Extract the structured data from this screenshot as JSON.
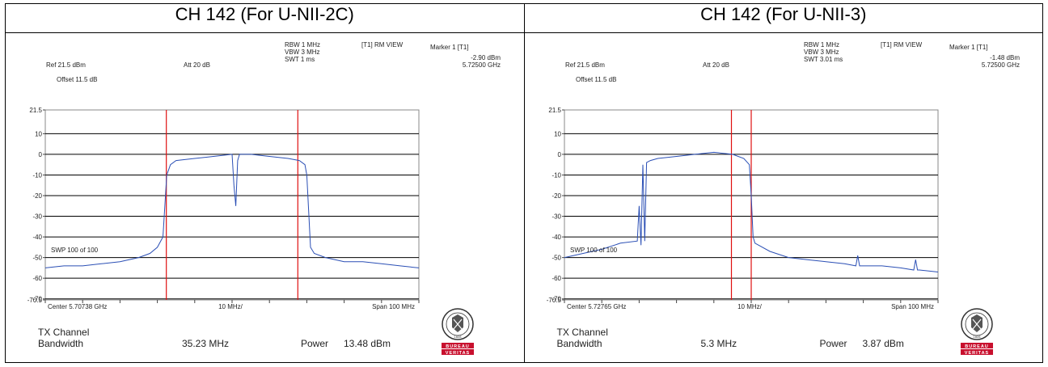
{
  "panels": [
    {
      "title": "CH 142 (For U-NII-2C)",
      "rbw": "RBW 1 MHz",
      "vbw": "VBW 3 MHz",
      "swt": "SWT 1 ms",
      "view": "[T1] RM VIEW",
      "marker_label": "Marker 1 [T1]",
      "marker_level": "-2.90 dBm",
      "marker_freq": "5.72500 GHz",
      "ref": "Ref 21.5 dBm",
      "att": "Att  20 dB",
      "offset": "Offset 11.5 dB",
      "swp": "SWP 100 of 100",
      "center": "Center 5.70738 GHz",
      "div": "10 MHz/",
      "span": "Span 100 MHz",
      "tx_label1": "TX Channel",
      "tx_label2": "Bandwidth",
      "bw_value": "35.23 MHz",
      "power_label": "Power",
      "power_value": "13.48 dBm"
    },
    {
      "title": "CH 142 (For U-NII-3)",
      "rbw": "RBW 1 MHz",
      "vbw": "VBW 3 MHz",
      "swt": "SWT 3.01 ms",
      "view": "[T1] RM VIEW",
      "marker_label": "Marker 1 [T1]",
      "marker_level": "-1.48 dBm",
      "marker_freq": "5.72500 GHz",
      "ref": "Ref 21.5 dBm",
      "att": "Att  20 dB",
      "offset": "Offset 11.5 dB",
      "swp": "SWP 100 of 100",
      "center": "Center 5.72765 GHz",
      "div": "10 MHz/",
      "span": "Span 100 MHz",
      "tx_label1": "TX Channel",
      "tx_label2": "Bandwidth",
      "bw_value": "5.3 MHz",
      "power_label": "Power",
      "power_value": "3.87 dBm"
    }
  ],
  "logo": {
    "top_text": "BUREAU",
    "bottom_text": "VERITAS",
    "year": "1828",
    "color": "#c8102e"
  },
  "colors": {
    "trace": "#2b4fb5",
    "marker_line": "#e01010",
    "grid": "#000000"
  },
  "chart_data": [
    {
      "type": "line",
      "title": "CH 142 (For U-NII-2C)",
      "xlabel": "",
      "ylabel": "",
      "x_range_div": [
        0,
        10
      ],
      "ylim": [
        -70.5,
        21.5
      ],
      "y_ticks": [
        21.5,
        10,
        0,
        -10,
        -20,
        -30,
        -40,
        -50,
        -60,
        -70,
        -70.5
      ],
      "grid": true,
      "vlines_div": [
        3.24,
        6.76
      ],
      "series": [
        {
          "x": [
            0,
            0.5,
            1,
            1.5,
            2,
            2.5,
            2.8,
            3.0,
            3.15,
            3.25,
            3.35,
            3.5,
            4,
            4.5,
            5,
            5.05,
            5.1,
            5.15,
            5.2,
            5.5,
            6,
            6.5,
            6.8,
            6.95,
            7.0,
            7.1,
            7.2,
            7.5,
            8,
            8.5,
            9,
            9.5,
            10
          ],
          "y": [
            -55,
            -54,
            -54,
            -53,
            -52,
            -50,
            -48,
            -45,
            -40,
            -10,
            -5,
            -3,
            -2,
            -1,
            0,
            -15,
            -25,
            -3,
            0,
            0,
            -1,
            -2,
            -3,
            -5,
            -10,
            -45,
            -48,
            -50,
            -52,
            -52,
            -53,
            -54,
            -55
          ]
        }
      ]
    },
    {
      "type": "line",
      "title": "CH 142 (For U-NII-3)",
      "xlabel": "",
      "ylabel": "",
      "x_range_div": [
        0,
        10
      ],
      "ylim": [
        -70.5,
        21.5
      ],
      "y_ticks": [
        21.5,
        10,
        0,
        -10,
        -20,
        -30,
        -40,
        -50,
        -60,
        -70,
        -70.5
      ],
      "grid": true,
      "vlines_div": [
        4.47,
        5.0
      ],
      "series": [
        {
          "x": [
            0,
            0.5,
            1,
            1.5,
            1.95,
            2.0,
            2.05,
            2.1,
            2.15,
            2.2,
            2.3,
            2.5,
            3,
            3.5,
            4,
            4.5,
            4.8,
            4.95,
            5.0,
            5.05,
            5.1,
            5.5,
            6,
            6.5,
            7,
            7.5,
            7.8,
            7.85,
            7.9,
            8,
            8.5,
            9,
            9.35,
            9.4,
            9.45,
            9.5,
            10
          ],
          "y": [
            -50,
            -48,
            -46,
            -43,
            -42,
            -25,
            -44,
            -5,
            -42,
            -4,
            -3,
            -2,
            -1,
            0,
            1,
            0,
            -2,
            -5,
            -20,
            -40,
            -43,
            -47,
            -50,
            -51,
            -52,
            -53,
            -54,
            -49,
            -54,
            -54,
            -54,
            -55,
            -56,
            -51,
            -56,
            -56,
            -57
          ]
        }
      ]
    }
  ]
}
